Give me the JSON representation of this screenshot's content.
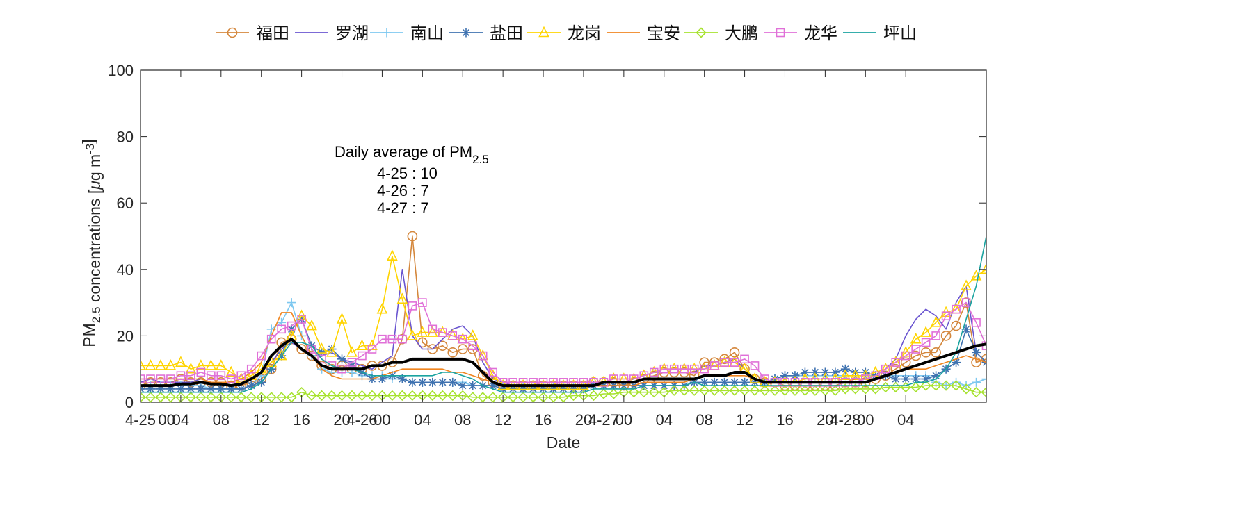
{
  "chart_data": {
    "type": "line",
    "xlabel": "Date",
    "ylabel": "PM2.5 concentrations [μg m-3]",
    "ylabel_parts": {
      "a": "PM",
      "sub": "2.5",
      "b": " concentrations [",
      "mu": "μ",
      "c": "g m",
      "sup": "-3",
      "d": "]"
    },
    "ylim": [
      0,
      100
    ],
    "yticks": [
      0,
      20,
      40,
      60,
      80,
      100
    ],
    "xlim": [
      0,
      84
    ],
    "xticks": [
      {
        "h": 0,
        "label": "4-25"
      },
      {
        "h": 4,
        "label": "04"
      },
      {
        "h": 8,
        "label": "08"
      },
      {
        "h": 12,
        "label": "12"
      },
      {
        "h": 16,
        "label": "16"
      },
      {
        "h": 20,
        "label": "20"
      },
      {
        "h": 24,
        "label": "00"
      },
      {
        "h": 28,
        "label": "04"
      },
      {
        "h": 32,
        "label": "08"
      },
      {
        "h": 36,
        "label": "12"
      },
      {
        "h": 40,
        "label": "16"
      },
      {
        "h": 44,
        "label": "20"
      },
      {
        "h": 48,
        "label": "00"
      },
      {
        "h": 52,
        "label": "04"
      },
      {
        "h": 56,
        "label": "08"
      },
      {
        "h": 60,
        "label": "12"
      },
      {
        "h": 64,
        "label": "16"
      },
      {
        "h": 68,
        "label": "20"
      },
      {
        "h": 72,
        "label": "00"
      },
      {
        "h": 76,
        "label": "04"
      }
    ],
    "extra_xlabels": [
      {
        "h": 2.6,
        "label": "00"
      },
      {
        "h": 22.0,
        "label": "4-26"
      },
      {
        "h": 46.0,
        "label": "4-27"
      },
      {
        "h": 70.0,
        "label": "4-28"
      }
    ],
    "x_unit": "hours since 4-25 00:00 (4-25 00 to 4-28 08)",
    "annotation": {
      "title": "Daily average of PM",
      "title_sub": "2.5",
      "lines": [
        "4-25 : 10",
        "4-26 : 7",
        "4-27 : 7"
      ]
    },
    "series": [
      {
        "name": "福田",
        "color": "#D4873C",
        "marker": "circle",
        "marker_step": 1,
        "values": [
          5,
          6,
          6,
          6,
          7,
          6,
          6,
          6,
          6,
          5,
          5,
          6,
          7,
          10,
          18,
          19,
          16,
          14,
          11,
          10,
          11,
          10,
          10,
          11,
          11,
          12,
          19,
          50,
          18,
          16,
          17,
          15,
          16,
          16,
          8,
          6,
          5,
          5,
          5,
          5,
          5,
          5,
          5,
          5,
          5,
          6,
          6,
          6,
          5,
          6,
          7,
          8,
          9,
          9,
          9,
          8,
          12,
          12,
          13,
          15,
          10,
          7,
          6,
          6,
          5,
          5,
          5,
          5,
          5,
          5,
          6,
          6,
          6,
          7,
          8,
          10,
          12,
          14,
          15,
          15,
          20,
          23,
          30,
          12,
          13
        ]
      },
      {
        "name": "罗湖",
        "color": "#6A55D0",
        "marker": "none",
        "marker_step": 1,
        "values": [
          6,
          7,
          6,
          6,
          6,
          6,
          7,
          6,
          6,
          6,
          7,
          7,
          9,
          12,
          16,
          18,
          16,
          14,
          14,
          15,
          13,
          12,
          11,
          10,
          12,
          14,
          40,
          20,
          16,
          16,
          19,
          22,
          23,
          20,
          12,
          7,
          6,
          5,
          5,
          5,
          5,
          5,
          5,
          5,
          5,
          6,
          6,
          6,
          6,
          7,
          8,
          9,
          9,
          9,
          9,
          9,
          11,
          11,
          12,
          13,
          10,
          7,
          6,
          6,
          6,
          6,
          6,
          6,
          6,
          6,
          6,
          6,
          7,
          8,
          10,
          13,
          20,
          25,
          28,
          26,
          22,
          30,
          35,
          15,
          12
        ]
      },
      {
        "name": "南山",
        "color": "#7EC8F0",
        "marker": "plus",
        "marker_step": 1,
        "values": [
          5,
          5,
          5,
          5,
          5,
          5,
          5,
          4,
          4,
          4,
          4,
          5,
          8,
          22,
          24,
          30,
          20,
          14,
          10,
          9,
          9,
          9,
          8,
          8,
          8,
          7,
          7,
          6,
          6,
          6,
          6,
          6,
          6,
          5,
          5,
          5,
          5,
          5,
          5,
          5,
          5,
          5,
          5,
          5,
          5,
          5,
          5,
          5,
          5,
          5,
          5,
          5,
          5,
          5,
          5,
          6,
          6,
          6,
          6,
          6,
          6,
          6,
          6,
          7,
          8,
          8,
          8,
          8,
          8,
          8,
          8,
          8,
          8,
          8,
          8,
          8,
          8,
          8,
          8,
          6,
          5,
          6,
          5,
          6,
          7
        ]
      },
      {
        "name": "盐田",
        "color": "#3F72B0",
        "marker": "star",
        "marker_step": 1,
        "values": [
          4,
          4,
          4,
          4,
          4,
          4,
          4,
          4,
          4,
          4,
          4,
          5,
          6,
          10,
          14,
          22,
          25,
          17,
          15,
          16,
          13,
          11,
          9,
          7,
          7,
          8,
          7,
          6,
          6,
          6,
          6,
          6,
          5,
          5,
          5,
          5,
          4,
          4,
          4,
          4,
          4,
          4,
          4,
          4,
          4,
          5,
          5,
          5,
          5,
          5,
          5,
          5,
          5,
          5,
          5,
          6,
          6,
          6,
          6,
          6,
          6,
          6,
          6,
          7,
          8,
          8,
          9,
          9,
          9,
          9,
          10,
          9,
          9,
          8,
          8,
          7,
          7,
          7,
          7,
          8,
          10,
          12,
          22,
          15,
          12
        ]
      },
      {
        "name": "龙岗",
        "color": "#FFD400",
        "marker": "triangle",
        "marker_step": 1,
        "values": [
          11,
          11,
          11,
          11,
          12,
          10,
          11,
          11,
          11,
          9,
          7,
          8,
          10,
          12,
          14,
          20,
          26,
          23,
          16,
          15,
          25,
          15,
          17,
          17,
          28,
          44,
          31,
          20,
          21,
          21,
          21,
          20,
          19,
          20,
          14,
          8,
          5,
          5,
          5,
          5,
          5,
          5,
          5,
          5,
          5,
          6,
          6,
          7,
          7,
          7,
          8,
          9,
          10,
          10,
          10,
          10,
          10,
          11,
          12,
          12,
          10,
          7,
          6,
          6,
          6,
          6,
          7,
          7,
          7,
          7,
          8,
          8,
          8,
          9,
          10,
          12,
          15,
          19,
          21,
          24,
          27,
          28,
          35,
          38,
          40
        ]
      },
      {
        "name": "宝安",
        "color": "#F0851F",
        "marker": "none",
        "marker_step": 1,
        "values": [
          7,
          7,
          7,
          7,
          7,
          7,
          7,
          6,
          6,
          6,
          7,
          9,
          12,
          20,
          27,
          27,
          20,
          14,
          10,
          8,
          7,
          7,
          7,
          7,
          8,
          9,
          10,
          10,
          10,
          10,
          10,
          9,
          9,
          8,
          7,
          6,
          5,
          5,
          5,
          5,
          5,
          5,
          5,
          5,
          5,
          5,
          5,
          5,
          5,
          5,
          6,
          6,
          6,
          6,
          6,
          7,
          8,
          8,
          8,
          8,
          8,
          7,
          6,
          6,
          6,
          6,
          6,
          6,
          6,
          6,
          6,
          7,
          7,
          7,
          8,
          9,
          10,
          10,
          10,
          11,
          12,
          13,
          14,
          13,
          12
        ]
      },
      {
        "name": "大鹏",
        "color": "#A6E22E",
        "marker": "diamond",
        "marker_step": 1,
        "values": [
          1.5,
          1.5,
          1.5,
          1.5,
          1.5,
          1.5,
          1.5,
          1.5,
          1.5,
          1.5,
          1.5,
          1.5,
          1.5,
          1.5,
          1.5,
          1.5,
          3,
          2,
          2,
          2,
          2,
          2,
          2,
          2,
          2,
          2,
          2,
          2,
          2,
          2,
          2,
          2,
          2,
          1.5,
          1.5,
          1.5,
          1.5,
          1.5,
          1.5,
          1.5,
          1.5,
          1.5,
          1.5,
          2,
          2,
          2,
          2.5,
          2.5,
          3,
          3,
          3,
          3,
          3,
          3.5,
          3.5,
          3.5,
          3.5,
          3.5,
          3.5,
          3.5,
          3.5,
          3.5,
          3.5,
          3.5,
          3.5,
          3.5,
          3.5,
          3.5,
          3.5,
          3.5,
          4,
          4,
          4,
          4,
          4.5,
          4.5,
          4.5,
          4.5,
          5,
          5,
          5,
          5,
          4,
          3,
          3
        ]
      },
      {
        "name": "龙华",
        "color": "#E070D8",
        "marker": "square",
        "marker_step": 1,
        "values": [
          7,
          7,
          7,
          7,
          8,
          8,
          9,
          8,
          8,
          7,
          8,
          10,
          14,
          19,
          22,
          23,
          25,
          16,
          13,
          11,
          10,
          12,
          14,
          16,
          19,
          19,
          19,
          29,
          30,
          22,
          21,
          20,
          19,
          17,
          14,
          9,
          6,
          6,
          6,
          6,
          6,
          6,
          6,
          6,
          6,
          6,
          6,
          7,
          7,
          7,
          8,
          9,
          10,
          10,
          10,
          10,
          10,
          11,
          12,
          12,
          13,
          11,
          7,
          6,
          6,
          6,
          6,
          6,
          6,
          6,
          6,
          6,
          7,
          8,
          10,
          12,
          14,
          16,
          18,
          20,
          26,
          28,
          30,
          24,
          17
        ]
      },
      {
        "name": "坪山",
        "color": "#1AA3A0",
        "marker": "none",
        "marker_step": 1,
        "values": [
          3,
          3,
          3,
          3,
          3,
          3,
          3,
          3,
          3,
          3,
          3,
          4,
          6,
          10,
          14,
          18,
          18,
          17,
          13,
          11,
          10,
          10,
          9,
          8,
          8,
          8,
          8,
          8,
          8,
          8,
          9,
          9,
          8,
          7,
          5,
          4,
          3,
          3,
          3,
          3,
          3,
          3,
          3,
          3,
          3,
          4,
          4,
          4,
          4,
          4,
          5,
          5,
          5,
          5,
          5,
          6,
          5,
          5,
          5,
          5,
          5,
          5,
          5,
          5,
          5,
          5,
          5,
          5,
          5,
          5,
          5,
          5,
          5,
          5,
          5,
          5,
          5,
          6,
          6,
          7,
          10,
          15,
          25,
          35,
          50
        ]
      },
      {
        "name": "",
        "color": "#000000",
        "marker": "none",
        "marker_step": 1,
        "width": 4,
        "values": [
          5,
          5,
          5,
          5,
          5.5,
          5.5,
          6,
          5.5,
          5.5,
          5,
          5.5,
          7,
          9,
          14,
          17,
          19,
          16,
          14,
          11,
          10,
          10,
          10,
          10,
          11,
          11,
          12,
          12,
          13,
          13,
          13,
          13,
          13,
          13,
          12,
          9,
          6,
          5,
          5,
          5,
          5,
          5,
          5,
          5,
          5,
          5,
          5,
          6,
          6,
          6,
          6,
          7,
          7,
          7,
          7,
          7,
          7,
          8,
          8,
          8,
          9,
          9,
          7,
          6,
          6,
          6,
          6,
          6,
          6,
          6,
          6,
          6,
          6,
          6,
          7,
          8,
          9,
          10,
          11,
          12,
          13,
          14,
          15,
          16,
          17,
          17.5
        ]
      }
    ]
  }
}
